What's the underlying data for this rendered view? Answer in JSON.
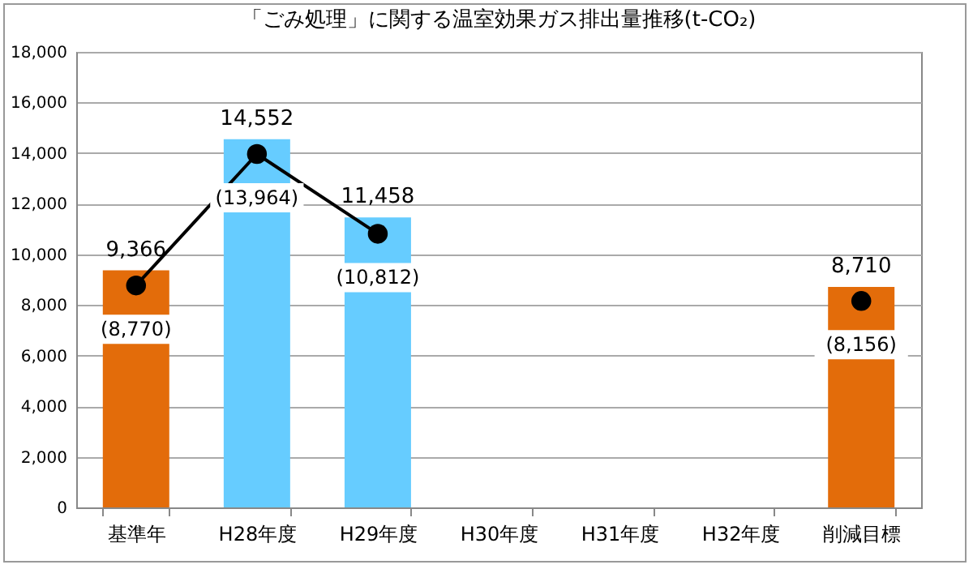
{
  "chart_data": {
    "type": "bar",
    "title": "「ごみ処理」に関する温室効果ガス排出量推移(t-CO₂)",
    "categories": [
      "基準年",
      "H28年度",
      "H29年度",
      "H30年度",
      "H31年度",
      "H32年度",
      "削減目標"
    ],
    "series": [
      {
        "colors": [
          "#e36c0a",
          "#66ccff",
          "#66ccff",
          null,
          null,
          null,
          "#e36c0a"
        ],
        "values": [
          9366,
          14552,
          11458,
          null,
          null,
          null,
          8710
        ],
        "value_labels": [
          "9,366",
          "14,552",
          "11,458",
          null,
          null,
          null,
          "8,710"
        ]
      },
      {
        "type": "line",
        "color": "#000000",
        "marker": "circle",
        "values": [
          8770,
          13964,
          10812,
          null,
          null,
          null,
          8156
        ],
        "value_labels": [
          "(8,770)",
          "(13,964)",
          "(10,812)",
          null,
          null,
          null,
          "(8,156)"
        ]
      }
    ],
    "ylim": [
      0,
      18000
    ],
    "yticks": [
      0,
      {
        "value": 2000,
        "label": "2,000"
      },
      {
        "value": 4000,
        "label": "4,000"
      },
      {
        "value": 6000,
        "label": "6,000"
      },
      {
        "value": 8000,
        "label": "8,000"
      },
      {
        "value": 10000,
        "label": "10,000"
      },
      {
        "value": 12000,
        "label": "12,000"
      },
      {
        "value": 14000,
        "label": "14,000"
      },
      {
        "value": 16000,
        "label": "16,000"
      },
      {
        "value": 18000,
        "label": "18,000"
      }
    ],
    "grid": "y"
  }
}
